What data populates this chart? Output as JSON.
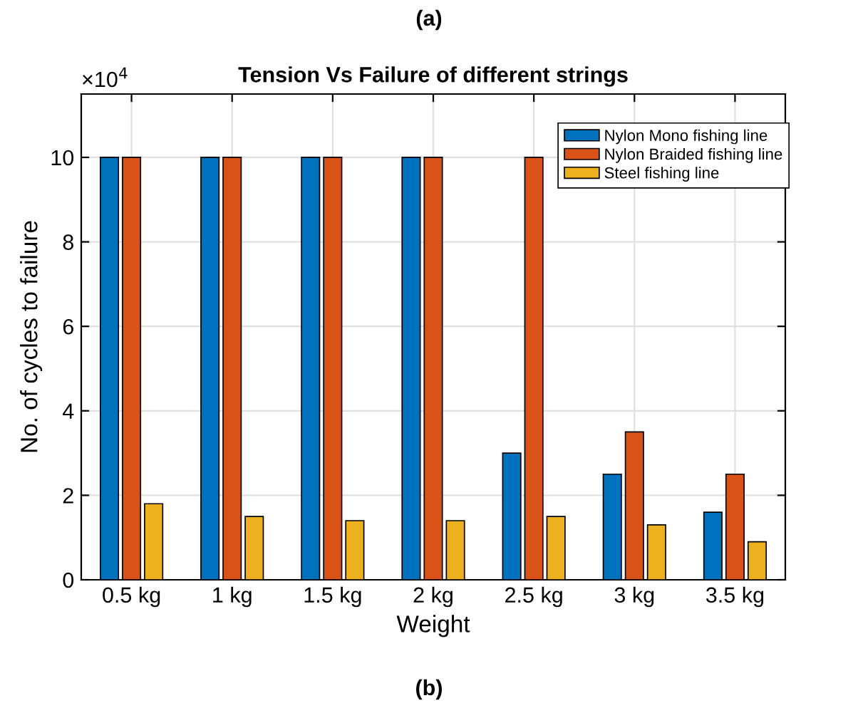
{
  "chart_data": {
    "type": "bar",
    "title": "Tension Vs Failure of different strings",
    "xlabel": "Weight",
    "ylabel": "No. of cycles to failure",
    "categories": [
      "0.5 kg",
      "1 kg",
      "1.5 kg",
      "2 kg",
      "2.5 kg",
      "3 kg",
      "3.5 kg"
    ],
    "series": [
      {
        "name": "Nylon Mono fishing line",
        "color": "#0072bd",
        "values": [
          10,
          10,
          10,
          10,
          3.0,
          2.5,
          1.6
        ]
      },
      {
        "name": "Nylon Braided fishing line",
        "color": "#d95319",
        "values": [
          10,
          10,
          10,
          10,
          10,
          3.5,
          2.5
        ]
      },
      {
        "name": "Steel fishing line",
        "color": "#edb120",
        "values": [
          1.8,
          1.5,
          1.4,
          1.4,
          1.5,
          1.3,
          0.9
        ]
      }
    ],
    "ylim": [
      0,
      11.5
    ],
    "yticks": [
      0,
      2,
      4,
      6,
      8,
      10
    ],
    "grid": true,
    "legend": "top right",
    "annotations": [
      "×10$^{4}$",
      "(a)",
      "(b)"
    ]
  }
}
